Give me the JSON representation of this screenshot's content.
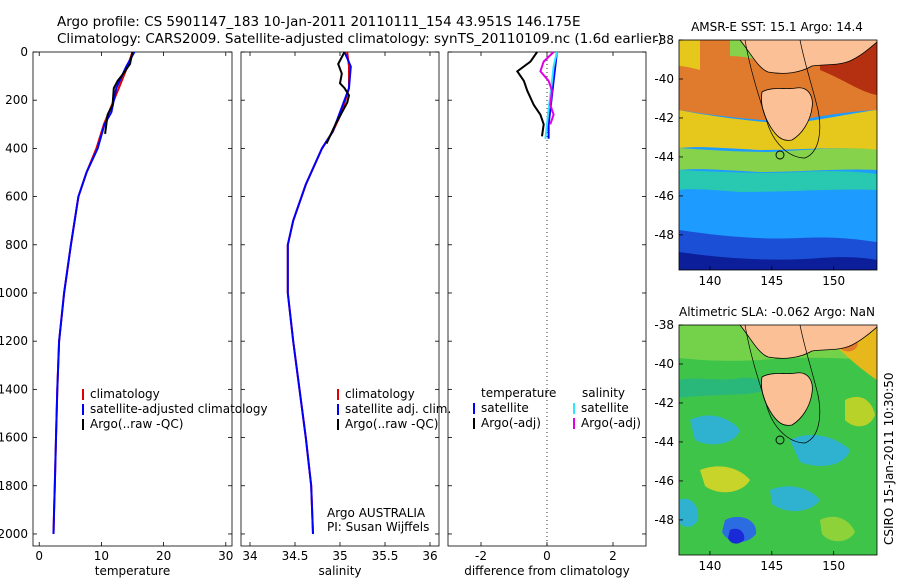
{
  "title": {
    "line1": "Argo profile: CS 5901147_183 10-Jan-2011 20110111_154 43.951S 146.175E",
    "line2": "Climatology: CARS2009. Satellite-adjusted climatology: synTS_20110109.nc (1.6d earlier)"
  },
  "side_label": "CSIRO 15-Jan-2011 10:30:50",
  "colors": {
    "red": "#e00000",
    "blue": "#0000ff",
    "black": "#000000",
    "cyan": "#33e6ff",
    "magenta": "#e000e0",
    "land": "#fbc096"
  },
  "chart_data": [
    {
      "type": "line",
      "name": "temperature-panel",
      "xlabel": "temperature",
      "ylabel": "",
      "xlim": [
        -1,
        31
      ],
      "ylim": [
        2050,
        0
      ],
      "xticks": [
        0,
        10,
        20,
        30
      ],
      "yticks": [
        0,
        200,
        400,
        600,
        800,
        1000,
        1200,
        1400,
        1600,
        1800,
        2000
      ],
      "legend": [
        {
          "label": "climatology",
          "color": "#e00000"
        },
        {
          "label": "satellite-adjusted climatology",
          "color": "#0000ff"
        },
        {
          "label": "Argo(..raw -QC)",
          "color": "#000000"
        }
      ],
      "series": [
        {
          "name": "climatology",
          "color": "#e00000",
          "x": [
            15.0,
            14.2,
            12.8,
            11.2,
            10.4,
            9.2,
            7.6,
            6.3,
            5.1,
            4.0,
            3.2,
            2.9,
            2.7,
            2.5,
            2.4,
            2.3
          ],
          "y": [
            0,
            60,
            150,
            250,
            300,
            400,
            500,
            600,
            800,
            1000,
            1200,
            1400,
            1600,
            1800,
            1900,
            2000
          ]
        },
        {
          "name": "satellite-adjusted climatology",
          "color": "#0000ff",
          "x": [
            15.3,
            14.0,
            12.4,
            11.6,
            10.5,
            9.4,
            7.6,
            6.3,
            5.1,
            4.0,
            3.2,
            2.9,
            2.7,
            2.5,
            2.4,
            2.3
          ],
          "y": [
            0,
            60,
            150,
            250,
            300,
            400,
            500,
            600,
            800,
            1000,
            1200,
            1400,
            1600,
            1800,
            1900,
            2000
          ]
        },
        {
          "name": "Argo(..raw -QC)",
          "color": "#000000",
          "x": [
            15.0,
            14.6,
            13.5,
            12.6,
            12.0,
            11.8,
            11.0,
            10.6
          ],
          "y": [
            0,
            50,
            90,
            120,
            150,
            220,
            260,
            340
          ]
        }
      ]
    },
    {
      "type": "line",
      "name": "salinity-panel",
      "xlabel": "salinity",
      "ylabel": "",
      "xlim": [
        33.9,
        36.1
      ],
      "ylim": [
        2050,
        0
      ],
      "xticks": [
        34,
        34.5,
        35,
        35.5,
        36
      ],
      "annotation": [
        "Argo AUSTRALIA",
        "PI: Susan Wijffels"
      ],
      "legend": [
        {
          "label": "climatology",
          "color": "#e00000"
        },
        {
          "label": "satellite adj. clim.",
          "color": "#0000ff"
        },
        {
          "label": "Argo(..raw -QC)",
          "color": "#000000"
        }
      ],
      "series": [
        {
          "name": "climatology",
          "color": "#e00000",
          "x": [
            35.08,
            35.1,
            35.1,
            35.02,
            34.92,
            34.8,
            34.62,
            34.48,
            34.42,
            34.42,
            34.48,
            34.55,
            34.62,
            34.68,
            34.7
          ],
          "y": [
            0,
            60,
            150,
            250,
            330,
            400,
            550,
            700,
            800,
            1000,
            1200,
            1400,
            1600,
            1800,
            2000
          ]
        },
        {
          "name": "satellite adj. clim.",
          "color": "#0000ff",
          "x": [
            35.05,
            35.12,
            35.1,
            35.0,
            34.92,
            34.8,
            34.62,
            34.48,
            34.42,
            34.42,
            34.48,
            34.55,
            34.62,
            34.68,
            34.7
          ],
          "y": [
            0,
            60,
            150,
            250,
            330,
            400,
            550,
            700,
            800,
            1000,
            1200,
            1400,
            1600,
            1800,
            2000
          ]
        },
        {
          "name": "Argo(..raw -QC)",
          "color": "#000000",
          "x": [
            35.05,
            34.98,
            35.02,
            35.0,
            35.05,
            35.1,
            35.08,
            34.95,
            34.9,
            34.85
          ],
          "y": [
            0,
            50,
            90,
            130,
            150,
            180,
            210,
            300,
            340,
            380
          ]
        }
      ]
    },
    {
      "type": "line",
      "name": "difference-panel",
      "xlabel": "difference from climatology",
      "ylabel": "",
      "xlim": [
        -3,
        3
      ],
      "ylim": [
        2050,
        0
      ],
      "xticks": [
        -2,
        0,
        2
      ],
      "legend_headers": [
        "temperature",
        "salinity"
      ],
      "legend": [
        {
          "label": "satellite",
          "color": "#0000ff",
          "group": "temperature"
        },
        {
          "label": "Argo(-adj)",
          "color": "#000000",
          "group": "temperature"
        },
        {
          "label": "satellite",
          "color": "#33e6ff",
          "group": "salinity"
        },
        {
          "label": "Argo(-adj)",
          "color": "#e000e0",
          "group": "salinity"
        }
      ],
      "series": [
        {
          "name": "temperature satellite",
          "color": "#0000ff",
          "x": [
            0.3,
            0.25,
            0.2,
            0.15,
            0.1,
            0.05,
            0.05
          ],
          "y": [
            0,
            60,
            120,
            180,
            240,
            300,
            360
          ]
        },
        {
          "name": "temperature Argo(-adj)",
          "color": "#000000",
          "x": [
            -0.3,
            -0.5,
            -0.9,
            -0.7,
            -0.6,
            -0.4,
            -0.2,
            -0.1,
            -0.15
          ],
          "y": [
            0,
            40,
            80,
            120,
            160,
            220,
            260,
            300,
            350
          ]
        },
        {
          "name": "salinity satellite",
          "color": "#33e6ff",
          "x": [
            0.3,
            0.2,
            0.15,
            0.1,
            0.05,
            0.0,
            -0.05
          ],
          "y": [
            0,
            60,
            120,
            180,
            240,
            300,
            360
          ]
        },
        {
          "name": "salinity Argo(-adj)",
          "color": "#e000e0",
          "x": [
            0.2,
            -0.1,
            -0.2,
            0.05,
            0.15,
            0.1,
            0.2,
            0.1
          ],
          "y": [
            0,
            40,
            80,
            120,
            160,
            220,
            260,
            300
          ]
        }
      ]
    },
    {
      "type": "heatmap",
      "name": "sst-map",
      "title": "AMSR-E SST: 15.1 Argo: 14.4",
      "xlim": [
        137.5,
        153.5
      ],
      "ylim": [
        -49.8,
        -38
      ],
      "xticks": [
        140,
        145,
        150
      ],
      "yticks": [
        -38,
        -40,
        -42,
        -44,
        -46,
        -48
      ],
      "float_position": [
        146.175,
        -43.951
      ]
    },
    {
      "type": "heatmap",
      "name": "sla-map",
      "title": "Altimetric SLA: -0.062 Argo: NaN",
      "xlim": [
        137.5,
        153.5
      ],
      "ylim": [
        -49.8,
        -38
      ],
      "xticks": [
        140,
        145,
        150
      ],
      "yticks": [
        -38,
        -40,
        -42,
        -44,
        -46,
        -48
      ],
      "float_position": [
        146.175,
        -43.951
      ]
    }
  ]
}
